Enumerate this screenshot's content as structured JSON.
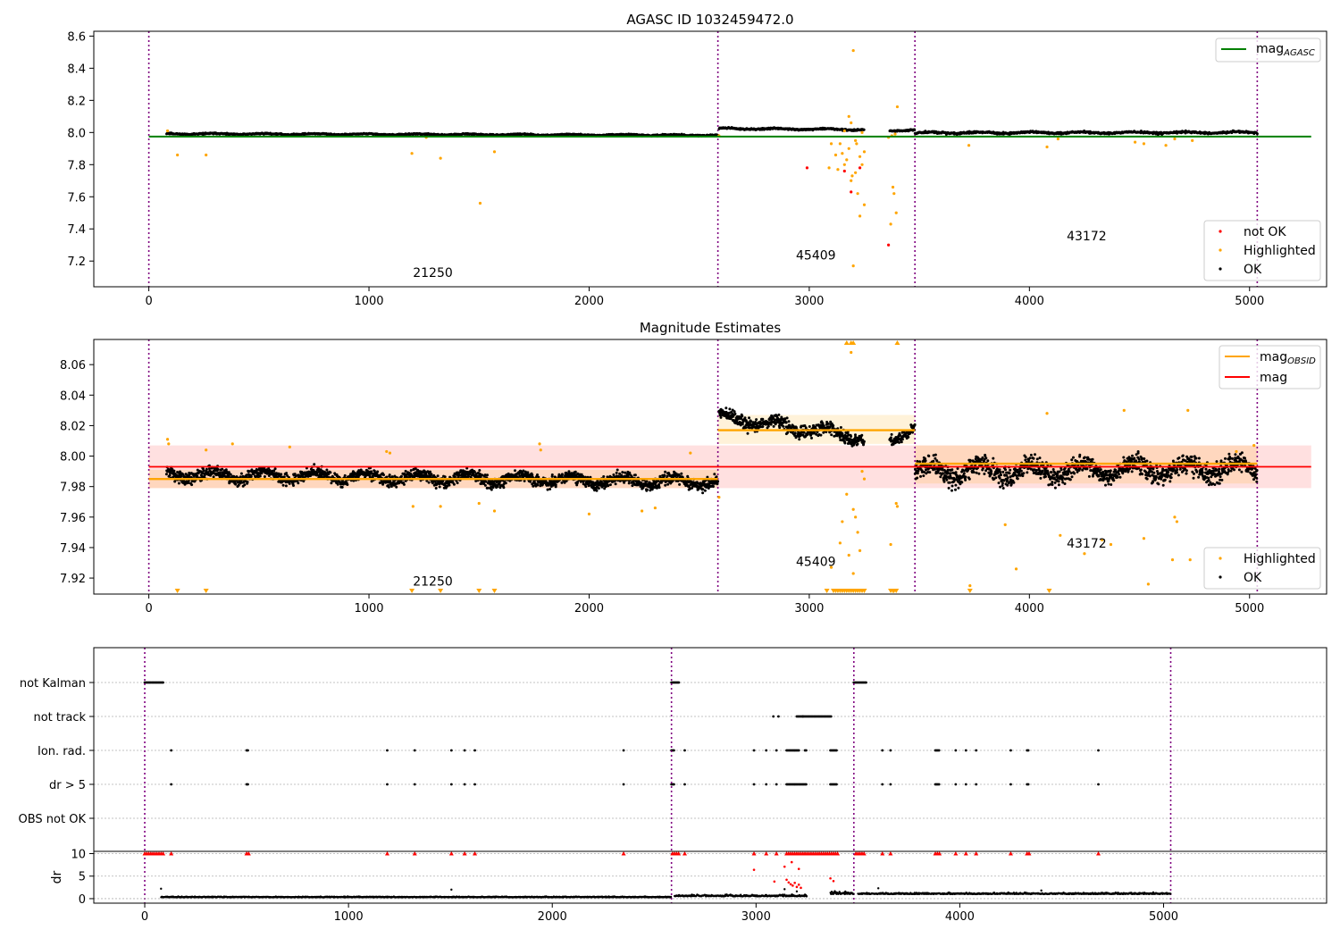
{
  "chart_data": [
    {
      "type": "scatter",
      "title": "AGASC ID 1032459472.0",
      "xlim": [
        -250,
        5350
      ],
      "ylim": [
        7.04,
        8.63
      ],
      "x_ticks": [
        0,
        1000,
        2000,
        3000,
        4000,
        5000
      ],
      "y_ticks": [
        7.2,
        7.4,
        7.6,
        7.8,
        8.0,
        8.2,
        8.4,
        8.6
      ],
      "legend_upper": {
        "placement": "upper-right",
        "entries": [
          {
            "name": "mag",
            "subscript": "AGASC",
            "color": "#008000"
          }
        ]
      },
      "legend_lower": {
        "placement": "lower-right",
        "entries": [
          {
            "name": "not OK",
            "color": "#ff0000"
          },
          {
            "name": "Highlighted",
            "color": "#ffa500"
          },
          {
            "name": "OK",
            "color": "#000000"
          }
        ]
      },
      "mag_agasc_line": {
        "value": 7.975,
        "x": [
          0,
          5280
        ],
        "color": "#008000"
      },
      "obsid_boundaries": [
        0,
        2585,
        3480,
        5035
      ],
      "obsid_labels": [
        {
          "text": "21250",
          "x": 1290,
          "y": 7.1
        },
        {
          "text": "45409",
          "x": 3030,
          "y": 7.21
        },
        {
          "text": "43172",
          "x": 4260,
          "y": 7.33
        }
      ],
      "ok_segments": [
        {
          "x_start": 80,
          "x_end": 2585,
          "level_start": 7.992,
          "level_end": 7.983,
          "spread": 0.006
        },
        {
          "x_start": 2590,
          "x_end": 3250,
          "level_start": 8.025,
          "level_end": 8.018,
          "spread": 0.007
        },
        {
          "x_start": 3365,
          "x_end": 3480,
          "level_start": 8.01,
          "level_end": 8.018,
          "spread": 0.006
        },
        {
          "x_start": 3480,
          "x_end": 5035,
          "level_start": 7.998,
          "level_end": 8.0,
          "spread": 0.009
        }
      ],
      "highlighted_points": [
        [
          85,
          8.01
        ],
        [
          130,
          7.86
        ],
        [
          260,
          7.86
        ],
        [
          1195,
          7.87
        ],
        [
          1325,
          7.84
        ],
        [
          1505,
          7.56
        ],
        [
          1570,
          7.88
        ],
        [
          1260,
          7.97
        ],
        [
          2590,
          7.98
        ],
        [
          3100,
          7.93
        ],
        [
          3120,
          7.86
        ],
        [
          3140,
          7.93
        ],
        [
          3160,
          7.8
        ],
        [
          3180,
          8.1
        ],
        [
          3190,
          8.06
        ],
        [
          3200,
          8.51
        ],
        [
          3210,
          7.75
        ],
        [
          3215,
          7.93
        ],
        [
          3220,
          7.62
        ],
        [
          3230,
          7.85
        ],
        [
          3240,
          7.8
        ],
        [
          3250,
          7.55
        ],
        [
          3190,
          7.7
        ],
        [
          3170,
          7.83
        ],
        [
          3090,
          7.78
        ],
        [
          3150,
          7.87
        ],
        [
          3200,
          7.17
        ],
        [
          3230,
          7.48
        ],
        [
          3240,
          8.0
        ],
        [
          3250,
          7.88
        ],
        [
          3180,
          7.9
        ],
        [
          3195,
          7.73
        ],
        [
          3370,
          7.43
        ],
        [
          3380,
          7.66
        ],
        [
          3385,
          7.62
        ],
        [
          3395,
          7.5
        ],
        [
          3400,
          8.16
        ],
        [
          3375,
          7.98
        ],
        [
          3390,
          7.99
        ],
        [
          3360,
          7.97
        ],
        [
          3160,
          8.01
        ],
        [
          3210,
          7.95
        ],
        [
          3130,
          7.77
        ],
        [
          3725,
          7.92
        ],
        [
          4080,
          7.91
        ],
        [
          4130,
          7.96
        ],
        [
          4620,
          7.92
        ],
        [
          4480,
          7.94
        ],
        [
          4520,
          7.93
        ],
        [
          4660,
          7.96
        ],
        [
          4740,
          7.95
        ]
      ],
      "not_ok_points": [
        [
          2990,
          7.78
        ],
        [
          3190,
          7.63
        ],
        [
          3360,
          7.3
        ],
        [
          3230,
          7.78
        ],
        [
          3160,
          7.76
        ]
      ]
    },
    {
      "type": "scatter",
      "title": "Magnitude Estimates",
      "xlim": [
        -250,
        5350
      ],
      "ylim": [
        7.9095,
        8.0765
      ],
      "x_ticks": [
        0,
        1000,
        2000,
        3000,
        4000,
        5000
      ],
      "y_ticks": [
        7.92,
        7.94,
        7.96,
        7.98,
        8.0,
        8.02,
        8.04,
        8.06
      ],
      "legend_upper": {
        "placement": "upper-right",
        "entries": [
          {
            "name": "mag",
            "subscript": "OBSID",
            "color": "#ffa500"
          },
          {
            "name": "mag",
            "subscript": "",
            "color": "#ff0000"
          }
        ]
      },
      "legend_lower": {
        "placement": "lower-right",
        "entries": [
          {
            "name": "Highlighted",
            "color": "#ffa500"
          },
          {
            "name": "OK",
            "color": "#000000"
          }
        ]
      },
      "mag_line": {
        "value": 7.993,
        "band": [
          7.979,
          8.007
        ],
        "x": [
          0,
          5280
        ],
        "color": "#ff0000"
      },
      "obsid_mags": [
        {
          "x_start": 0,
          "x_end": 2585,
          "mag": 7.985,
          "band": [
            7.979,
            7.991
          ]
        },
        {
          "x_start": 2585,
          "x_end": 3480,
          "mag": 8.017,
          "band": [
            8.008,
            8.027
          ]
        },
        {
          "x_start": 3480,
          "x_end": 5035,
          "mag": 7.995,
          "band": [
            7.982,
            8.007
          ]
        }
      ],
      "obsid_boundaries": [
        0,
        2585,
        3480,
        5035
      ],
      "obsid_labels": [
        {
          "text": "21250",
          "x": 1290,
          "y": 7.915
        },
        {
          "text": "45409",
          "x": 3030,
          "y": 7.928
        },
        {
          "text": "43172",
          "x": 4260,
          "y": 7.94
        }
      ],
      "ok_segments": [
        {
          "x_start": 80,
          "x_end": 2585,
          "level_start": 7.988,
          "level_end": 7.983,
          "spread": 0.0055
        },
        {
          "x_start": 2590,
          "x_end": 3250,
          "level_start": 8.026,
          "level_end": 8.012,
          "spread": 0.006
        },
        {
          "x_start": 3365,
          "x_end": 3480,
          "level_start": 8.01,
          "level_end": 8.02,
          "spread": 0.005
        },
        {
          "x_start": 3480,
          "x_end": 5035,
          "level_start": 7.99,
          "level_end": 7.992,
          "spread": 0.009
        }
      ],
      "highlighted_points": [
        [
          85,
          8.011
        ],
        [
          90,
          8.008
        ],
        [
          260,
          8.004
        ],
        [
          380,
          8.008
        ],
        [
          640,
          8.006
        ],
        [
          1080,
          8.003
        ],
        [
          1095,
          8.002
        ],
        [
          1200,
          7.967
        ],
        [
          1325,
          7.967
        ],
        [
          1500,
          7.969
        ],
        [
          1570,
          7.964
        ],
        [
          1775,
          8.008
        ],
        [
          1780,
          8.004
        ],
        [
          2000,
          7.962
        ],
        [
          2240,
          7.964
        ],
        [
          2300,
          7.966
        ],
        [
          2460,
          8.002
        ],
        [
          2590,
          7.973
        ],
        [
          3150,
          7.957
        ],
        [
          3140,
          7.943
        ],
        [
          3100,
          7.927
        ],
        [
          3170,
          7.975
        ],
        [
          3190,
          8.068
        ],
        [
          3200,
          7.965
        ],
        [
          3210,
          7.96
        ],
        [
          3220,
          7.95
        ],
        [
          3230,
          7.938
        ],
        [
          3240,
          7.99
        ],
        [
          3250,
          7.985
        ],
        [
          3200,
          7.923
        ],
        [
          3180,
          7.935
        ],
        [
          3370,
          7.942
        ],
        [
          3395,
          7.969
        ],
        [
          3400,
          7.967
        ],
        [
          3890,
          7.955
        ],
        [
          3940,
          7.926
        ],
        [
          3730,
          7.915
        ],
        [
          4080,
          8.028
        ],
        [
          4140,
          7.948
        ],
        [
          4250,
          7.936
        ],
        [
          4330,
          7.945
        ],
        [
          4370,
          7.942
        ],
        [
          4430,
          8.03
        ],
        [
          4520,
          7.946
        ],
        [
          4540,
          7.916
        ],
        [
          4660,
          7.96
        ],
        [
          4670,
          7.957
        ],
        [
          4650,
          7.932
        ],
        [
          4720,
          8.03
        ],
        [
          4730,
          7.932
        ],
        [
          4940,
          8.003
        ],
        [
          5020,
          8.007
        ]
      ],
      "highlighted_low_markers_x": [
        130,
        260,
        1195,
        1325,
        1500,
        1570,
        3080,
        3110,
        3120,
        3130,
        3140,
        3150,
        3160,
        3170,
        3180,
        3190,
        3200,
        3210,
        3220,
        3230,
        3240,
        3250,
        3370,
        3380,
        3385,
        3395,
        3730,
        4090
      ],
      "highlighted_high_markers_x": [
        3170,
        3190,
        3200,
        3400
      ],
      "highlighted_marker_names": {
        "low": "highlighted-below-range-marker",
        "high": "highlighted-above-range-marker"
      }
    },
    {
      "type": "scatter",
      "title": "",
      "xlim": [
        -250,
        5800
      ],
      "x_ticks": [
        0,
        1000,
        2000,
        3000,
        4000,
        5000
      ],
      "flag_rows": [
        "not Kalman",
        "not track",
        "Ion. rad.",
        "dr > 5",
        "OBS not OK"
      ],
      "flag_points": {
        "not Kalman": [
          [
            0,
            90
          ],
          [
            2585,
            2625
          ],
          [
            3480,
            3540
          ]
        ],
        "not track": [
          [
            3085,
            3085
          ],
          [
            3110,
            3110
          ],
          [
            3200,
            3230
          ],
          [
            3230,
            3370
          ]
        ],
        "Ion. rad.": [
          [
            130,
            130
          ],
          [
            500,
            510
          ],
          [
            1190,
            1190
          ],
          [
            1325,
            1325
          ],
          [
            1505,
            1505
          ],
          [
            1570,
            1570
          ],
          [
            1620,
            1620
          ],
          [
            2350,
            2350
          ],
          [
            2585,
            2600
          ],
          [
            2650,
            2650
          ],
          [
            2990,
            2990
          ],
          [
            3050,
            3050
          ],
          [
            3100,
            3100
          ],
          [
            3150,
            3210
          ],
          [
            3240,
            3250
          ],
          [
            3365,
            3400
          ],
          [
            3620,
            3620
          ],
          [
            3660,
            3660
          ],
          [
            3880,
            3900
          ],
          [
            3980,
            3980
          ],
          [
            4030,
            4030
          ],
          [
            4080,
            4080
          ],
          [
            4250,
            4250
          ],
          [
            4330,
            4340
          ],
          [
            4680,
            4680
          ]
        ],
        "dr > 5": [
          [
            130,
            130
          ],
          [
            500,
            510
          ],
          [
            1190,
            1190
          ],
          [
            1325,
            1325
          ],
          [
            1505,
            1505
          ],
          [
            1570,
            1570
          ],
          [
            1620,
            1620
          ],
          [
            2350,
            2350
          ],
          [
            2585,
            2600
          ],
          [
            2650,
            2650
          ],
          [
            2990,
            2990
          ],
          [
            3050,
            3050
          ],
          [
            3100,
            3100
          ],
          [
            3150,
            3250
          ],
          [
            3365,
            3400
          ],
          [
            3620,
            3620
          ],
          [
            3660,
            3660
          ],
          [
            3880,
            3900
          ],
          [
            3980,
            3980
          ],
          [
            4030,
            4030
          ],
          [
            4080,
            4080
          ],
          [
            4250,
            4250
          ],
          [
            4330,
            4340
          ],
          [
            4680,
            4680
          ]
        ],
        "OBS not OK": []
      },
      "dr_panel": {
        "ylabel": "dr",
        "y_ticks": [
          0,
          5,
          10
        ],
        "ylim": [
          -1,
          10.5
        ],
        "capped_at_10_x": [
          0,
          10,
          20,
          30,
          40,
          50,
          60,
          70,
          80,
          90,
          130,
          500,
          510,
          1190,
          1325,
          1505,
          1570,
          1620,
          2350,
          2590,
          2600,
          2610,
          2620,
          2650,
          2990,
          3050,
          3100,
          3150,
          3160,
          3170,
          3180,
          3190,
          3200,
          3210,
          3220,
          3230,
          3240,
          3250,
          3260,
          3270,
          3280,
          3290,
          3300,
          3310,
          3320,
          3330,
          3340,
          3350,
          3360,
          3370,
          3380,
          3390,
          3400,
          3490,
          3500,
          3510,
          3520,
          3530,
          3620,
          3660,
          3880,
          3890,
          3900,
          3980,
          4030,
          4080,
          4250,
          4330,
          4340,
          4680
        ],
        "ok_segments": [
          {
            "x_start": 80,
            "x_end": 2585,
            "level": 0.3,
            "spread": 0.25
          },
          {
            "x_start": 2600,
            "x_end": 3250,
            "level": 0.5,
            "spread": 0.6
          },
          {
            "x_start": 3365,
            "x_end": 3480,
            "level": 1.0,
            "spread": 1.0
          },
          {
            "x_start": 3500,
            "x_end": 5035,
            "level": 1.0,
            "spread": 0.5
          }
        ],
        "ok_extra_points": [
          [
            80,
            2.2
          ],
          [
            1505,
            2.0
          ],
          [
            3140,
            2.1
          ],
          [
            3200,
            1.6
          ],
          [
            3600,
            2.3
          ],
          [
            4400,
            1.8
          ]
        ],
        "not_ok_points": [
          [
            2990,
            6.4
          ],
          [
            3090,
            3.8
          ],
          [
            3150,
            4.2
          ],
          [
            3160,
            3.6
          ],
          [
            3170,
            3.2
          ],
          [
            3180,
            2.9
          ],
          [
            3190,
            3.5
          ],
          [
            3200,
            2.6
          ],
          [
            3210,
            3.1
          ],
          [
            3220,
            2.4
          ],
          [
            3140,
            7.1
          ],
          [
            3175,
            8.1
          ],
          [
            3210,
            6.6
          ],
          [
            3365,
            4.5
          ],
          [
            3380,
            3.9
          ]
        ]
      }
    }
  ]
}
